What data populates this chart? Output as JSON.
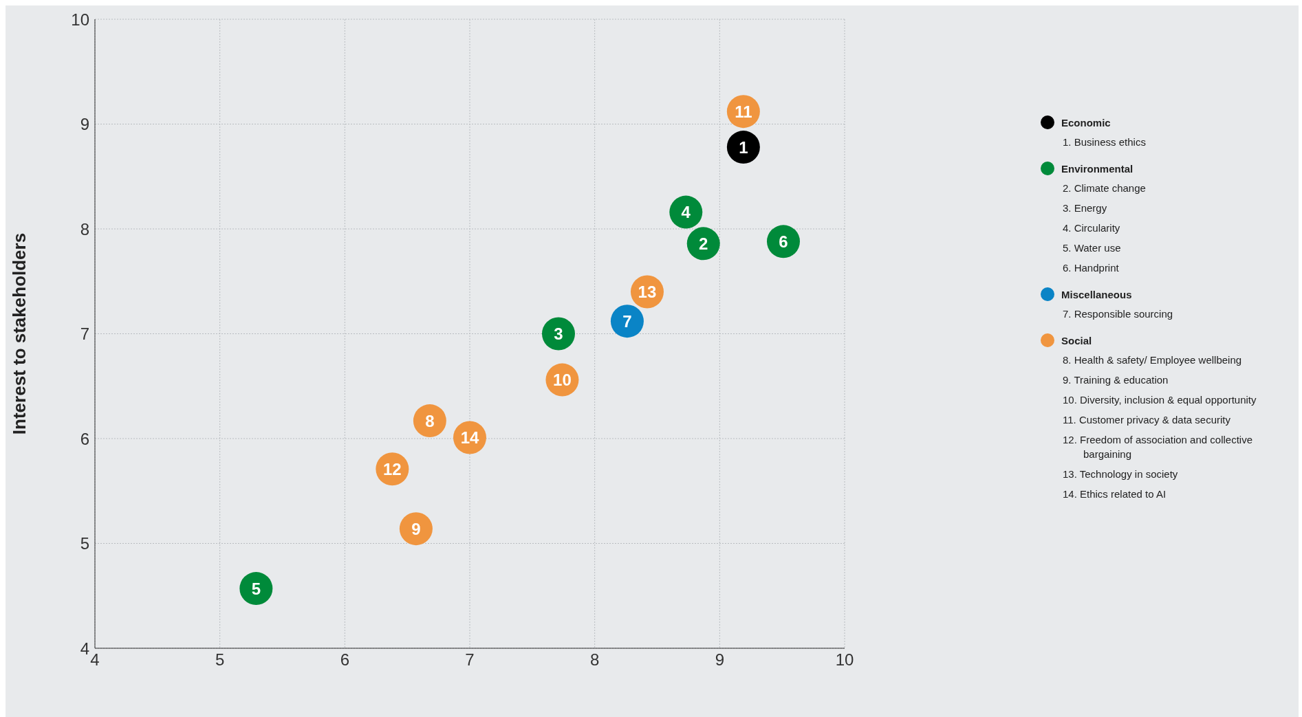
{
  "chart_data": {
    "type": "scatter",
    "ylabel": "Interest to stakeholders",
    "xlim": [
      4,
      10
    ],
    "xticks": [
      4,
      5,
      6,
      7,
      8,
      9,
      10
    ],
    "ylim": [
      4,
      10
    ],
    "yticks": [
      4,
      5,
      6,
      7,
      8,
      9,
      10
    ],
    "grid": true,
    "legend": "right",
    "marker": "circle",
    "series": [
      {
        "name": "Economic",
        "color": "#000000",
        "x": [
          9.19
        ],
        "values": [
          8.78
        ]
      },
      {
        "name": "Environmental",
        "color": "#008a3a",
        "x": [
          8.87,
          7.71,
          8.73,
          5.29,
          9.51
        ],
        "values": [
          7.86,
          7.0,
          8.16,
          4.57,
          7.88
        ]
      },
      {
        "name": "Miscellaneous",
        "color": "#0a84c6",
        "x": [
          8.26
        ],
        "values": [
          7.12
        ]
      },
      {
        "name": "Social",
        "color": "#f0953f",
        "x": [
          6.68,
          6.57,
          7.74,
          9.19,
          6.38,
          8.42,
          7.0
        ],
        "values": [
          6.17,
          5.14,
          6.56,
          9.12,
          5.71,
          7.4,
          6.01
        ]
      }
    ],
    "annotations": [
      "1. Business ethics",
      "2. Climate change",
      "3. Energy",
      "4. Circularity",
      "5. Water use",
      "6. Handprint",
      "7. Responsible sourcing",
      "8. Health & safety/ Employee wellbeing",
      "9. Training & education",
      "10. Diversity, inclusion & equal opportunity",
      "11. Customer privacy & data security",
      "12. Freedom of association and collective bargaining",
      "13. Technology in society",
      "14. Ethics related to AI",
      {
        "text": "1",
        "x": 9.19,
        "y": 8.78
      },
      {
        "text": "2",
        "x": 8.87,
        "y": 7.86
      },
      {
        "text": "3",
        "x": 7.71,
        "y": 7.0
      },
      {
        "text": "4",
        "x": 8.73,
        "y": 8.16
      },
      {
        "text": "5",
        "x": 5.29,
        "y": 4.57
      },
      {
        "text": "6",
        "x": 9.51,
        "y": 7.88
      },
      {
        "text": "7",
        "x": 8.26,
        "y": 7.12
      },
      {
        "text": "8",
        "x": 6.68,
        "y": 6.17
      },
      {
        "text": "9",
        "x": 6.57,
        "y": 5.14
      },
      {
        "text": "10",
        "x": 7.74,
        "y": 6.56
      },
      {
        "text": "11",
        "x": 9.19,
        "y": 9.12
      },
      {
        "text": "12",
        "x": 6.38,
        "y": 5.71
      },
      {
        "text": "13",
        "x": 8.42,
        "y": 7.4
      },
      {
        "text": "14",
        "x": 7.0,
        "y": 6.01
      }
    ]
  }
}
